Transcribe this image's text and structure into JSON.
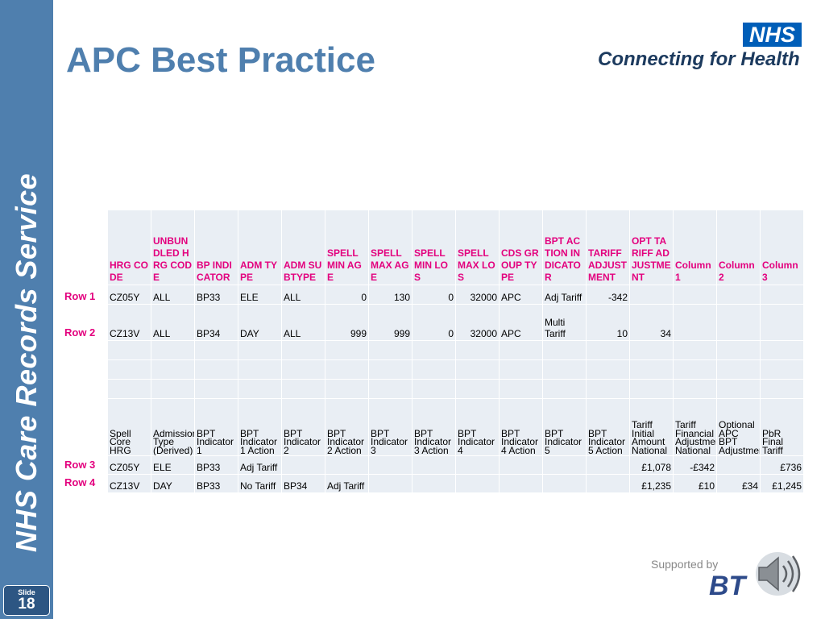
{
  "title": "APC Best Practice",
  "sidebar": {
    "text": "NHS Care Records Service",
    "slide_label": "Slide",
    "slide_number": "18"
  },
  "logo": {
    "nhs": "NHS",
    "connecting": "Connecting for Health"
  },
  "footer": {
    "supported_by": "Supported by",
    "bt": "BT"
  },
  "row_labels": [
    "Row 1",
    "Row 2",
    "Row 3",
    "Row 4"
  ],
  "table": {
    "headers": [
      "HRG CODE",
      "UNBUNDLED HRG CODE",
      "BP INDICATOR",
      "ADM TYPE",
      "ADM SUBTYPE",
      "SPELL MIN AGE",
      "SPELL MAX AGE",
      "SPELL MIN LOS",
      "SPELL MAX LOS",
      "CDS GROUP TYPE",
      "BPT ACTION INDICATOR",
      "TARIFF ADJUSTMENT",
      "OPT TARIFF ADJUSTMENT",
      "Column 1",
      "Column 2",
      "Column 3"
    ],
    "row1": [
      "CZ05Y",
      "ALL",
      "BP33",
      "ELE",
      "ALL",
      "0",
      "130",
      "0",
      "32000",
      "APC",
      "Adj Tariff",
      "-342",
      "",
      "",
      "",
      ""
    ],
    "row2": [
      "CZ13V",
      "ALL",
      "BP34",
      "DAY",
      "ALL",
      "999",
      "999",
      "0",
      "32000",
      "APC",
      "Multi Tariff",
      "10",
      "34",
      "",
      "",
      ""
    ],
    "subheaders": [
      "Spell Core HRG",
      "Admission Type (Derived)",
      "BPT Indicator 1",
      "BPT Indicator 1 Action",
      "BPT Indicator 2",
      "BPT Indicator 2 Action",
      "BPT Indicator 3",
      "BPT Indicator 3 Action",
      "BPT Indicator 4",
      "BPT Indicator 4 Action",
      "BPT Indicator 5",
      "BPT Indicator 5 Action",
      "Tariff Initial Amount National",
      "Tariff Financial Adjustment National",
      "Optional APC BPT Adjustment",
      "PbR Final Tariff"
    ],
    "row3": [
      "CZ05Y",
      "ELE",
      "BP33",
      "Adj Tariff",
      "",
      "",
      "",
      "",
      "",
      "",
      "",
      "",
      "£1,078",
      "-£342",
      "",
      "£736"
    ],
    "row4": [
      "CZ13V",
      "DAY",
      "BP33",
      "No Tariff",
      "BP34",
      "Adj Tariff",
      "",
      "",
      "",
      "",
      "",
      "",
      "£1,235",
      "£10",
      "£34",
      "£1,245"
    ]
  },
  "colors": {
    "sidebar": "#4f7fae",
    "title": "#4f7fae",
    "header_text": "#e3007e",
    "cell_bg": "#e9eef4",
    "nhs_blue": "#005eb8"
  }
}
